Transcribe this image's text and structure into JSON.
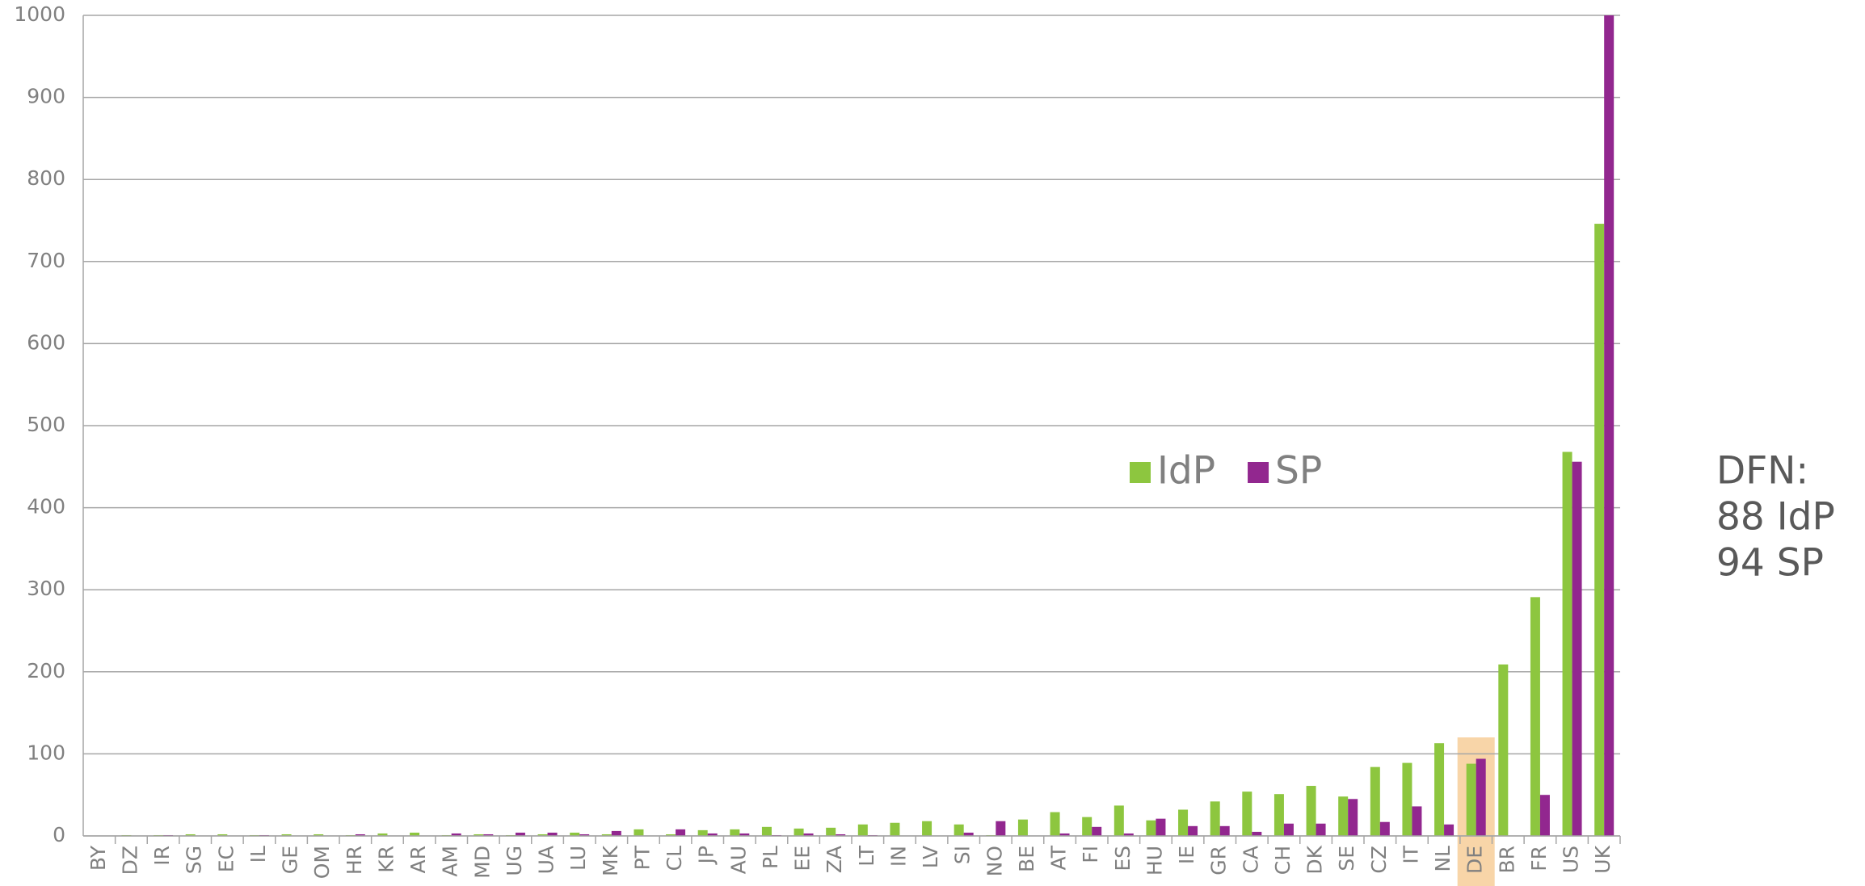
{
  "chart_data": {
    "type": "bar",
    "categories": [
      "BY",
      "DZ",
      "IR",
      "SG",
      "EC",
      "IL",
      "GE",
      "OM",
      "HR",
      "KR",
      "AR",
      "AM",
      "MD",
      "UG",
      "UA",
      "LU",
      "MK",
      "PT",
      "CL",
      "JP",
      "AU",
      "PL",
      "EE",
      "ZA",
      "LT",
      "IN",
      "LV",
      "SI",
      "NO",
      "BE",
      "AT",
      "FI",
      "ES",
      "HU",
      "IE",
      "GR",
      "CA",
      "CH",
      "DK",
      "SE",
      "CZ",
      "IT",
      "NL",
      "DE",
      "BR",
      "FR",
      "US",
      "UK"
    ],
    "series": [
      {
        "name": "IdP",
        "color": "#8dc63f",
        "values": [
          0,
          1,
          1,
          2,
          2,
          1,
          2,
          2,
          1,
          3,
          4,
          1,
          2,
          1,
          2,
          4,
          2,
          8,
          2,
          7,
          8,
          11,
          9,
          10,
          14,
          16,
          18,
          14,
          1,
          20,
          29,
          23,
          37,
          19,
          32,
          42,
          54,
          51,
          61,
          48,
          84,
          89,
          113,
          88,
          209,
          291,
          468,
          746
        ]
      },
      {
        "name": "SP",
        "color": "#92278f",
        "values": [
          0,
          0,
          1,
          0,
          0,
          1,
          0,
          0,
          2,
          0,
          0,
          3,
          2,
          4,
          4,
          2,
          6,
          0,
          8,
          3,
          3,
          1,
          3,
          2,
          1,
          0,
          0,
          4,
          18,
          0,
          3,
          11,
          3,
          21,
          12,
          12,
          5,
          15,
          15,
          45,
          17,
          36,
          14,
          94,
          0,
          50,
          456,
          1000
        ]
      }
    ],
    "ylim": [
      0,
      1000
    ],
    "yticks": [
      0,
      100,
      200,
      300,
      400,
      500,
      600,
      700,
      800,
      900,
      1000
    ],
    "grid": true,
    "highlight_category": "DE",
    "annotation": [
      "DFN:",
      "88 IdP",
      "94 SP"
    ]
  }
}
